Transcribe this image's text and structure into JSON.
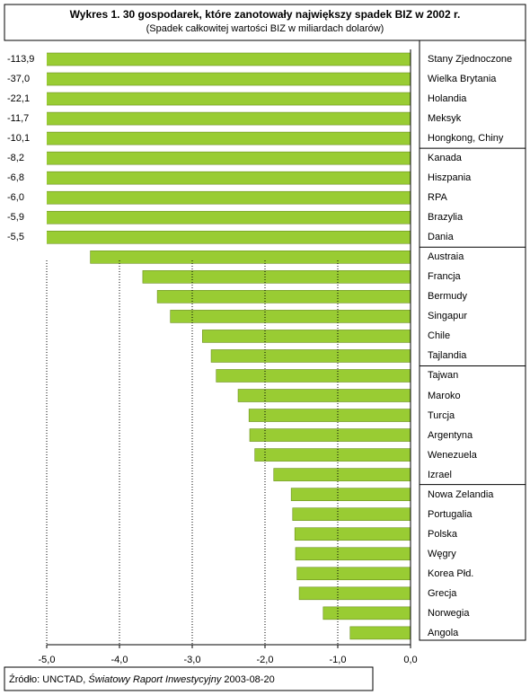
{
  "chart_data": {
    "type": "hbar",
    "title": "Wykres 1. 30 gospodarek, które zanotowały największy spadek BIZ w 2002 r.",
    "subtitle": "(Spadek całkowitej wartości BIZ w miliardach dolarów)",
    "categories": [
      "Stany Zjednoczone",
      "Wielka Brytania",
      "Holandia",
      "Meksyk",
      "Hongkong, Chiny",
      "Kanada",
      "Hiszpania",
      "RPA",
      "Brazylia",
      "Dania",
      "Austraia",
      "Francja",
      "Bermudy",
      "Singapur",
      "Chile",
      "Tajlandia",
      "Tajwan",
      "Maroko",
      "Turcja",
      "Argentyna",
      "Wenezuela",
      "Izrael",
      "Nowa Zelandia",
      "Portugalia",
      "Polska",
      "Węgry",
      "Korea Płd.",
      "Grecja",
      "Norwegia",
      "Angola"
    ],
    "values": [
      -113.9,
      -37.0,
      -22.1,
      -11.7,
      -10.1,
      -8.2,
      -6.8,
      -6.0,
      -5.9,
      -5.5,
      -4.4,
      -3.68,
      -3.48,
      -3.3,
      -2.86,
      -2.74,
      -2.67,
      -2.37,
      -2.22,
      -2.21,
      -2.14,
      -1.88,
      -1.64,
      -1.62,
      -1.59,
      -1.58,
      -1.56,
      -1.53,
      -1.2,
      -0.83
    ],
    "value_labels": [
      "-113,9",
      "-37,0",
      "-22,1",
      "-11,7",
      "-10,1",
      "-8,2",
      "-6,8",
      "-6,0",
      "-5,9",
      "-5,5",
      null,
      null,
      null,
      null,
      null,
      null,
      null,
      null,
      null,
      null,
      null,
      null,
      null,
      null,
      null,
      null,
      null,
      null,
      null,
      null
    ],
    "color": "#99cc33",
    "xlim": [
      -5,
      0
    ],
    "xticks": [
      {
        "value": -5,
        "label": "-5,0"
      },
      {
        "value": -4,
        "label": "-4,0"
      },
      {
        "value": -3,
        "label": "-3,0"
      },
      {
        "value": -2,
        "label": "-2,0"
      },
      {
        "value": -1,
        "label": "-1,0"
      },
      {
        "value": 0,
        "label": "0,0"
      }
    ],
    "grid": true,
    "source": {
      "prefix": "Źródło: UNCTAD, ",
      "italic": "Światowy Raport Inwestycyjny",
      "suffix": " 2003-08-20"
    }
  }
}
